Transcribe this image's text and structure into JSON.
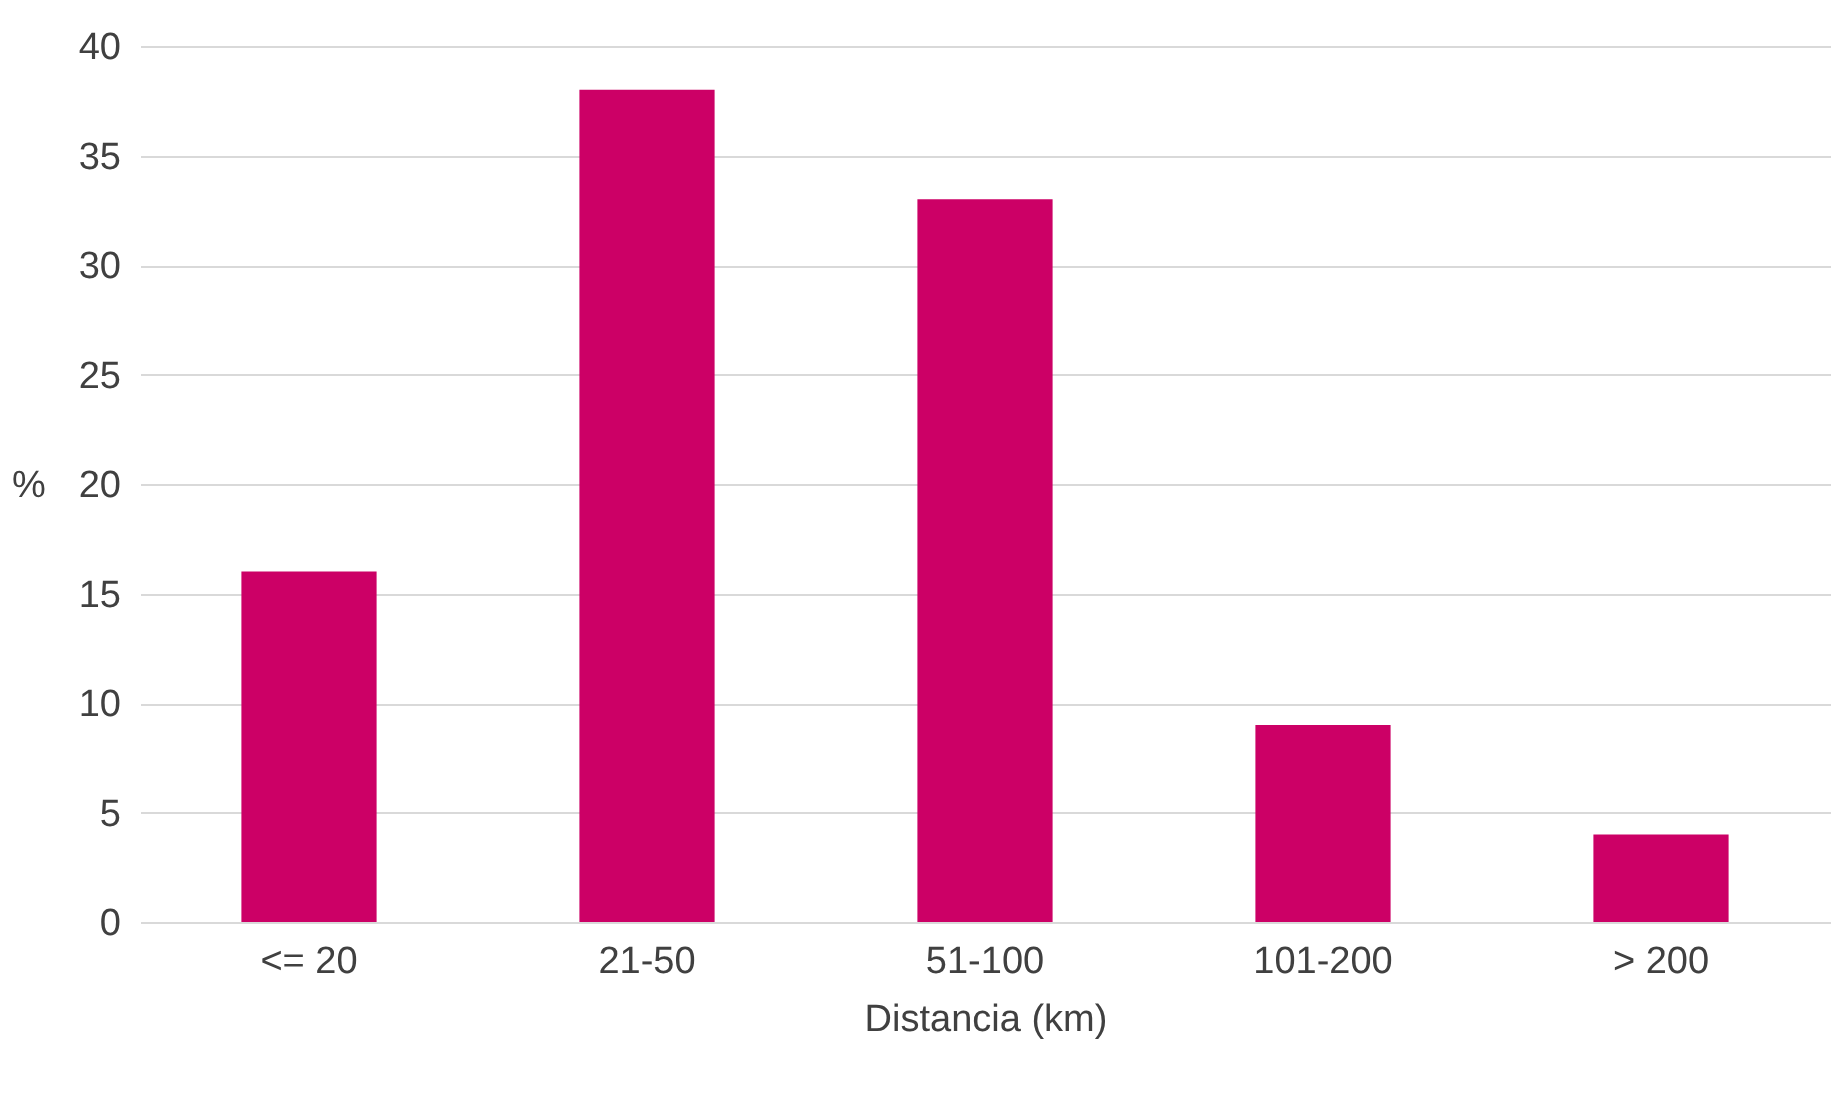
{
  "chart_data": {
    "type": "bar",
    "xlabel": "Distancia (km)",
    "ylabel": "%",
    "categories": [
      "<= 20",
      "21-50",
      "51-100",
      "101-200",
      "> 200"
    ],
    "values": [
      16,
      38,
      33,
      9,
      4
    ],
    "color": "#cc0066",
    "ylim": [
      0,
      40
    ],
    "yticks": [
      0,
      5,
      10,
      15,
      20,
      25,
      30,
      35,
      40
    ],
    "grid": "y"
  }
}
